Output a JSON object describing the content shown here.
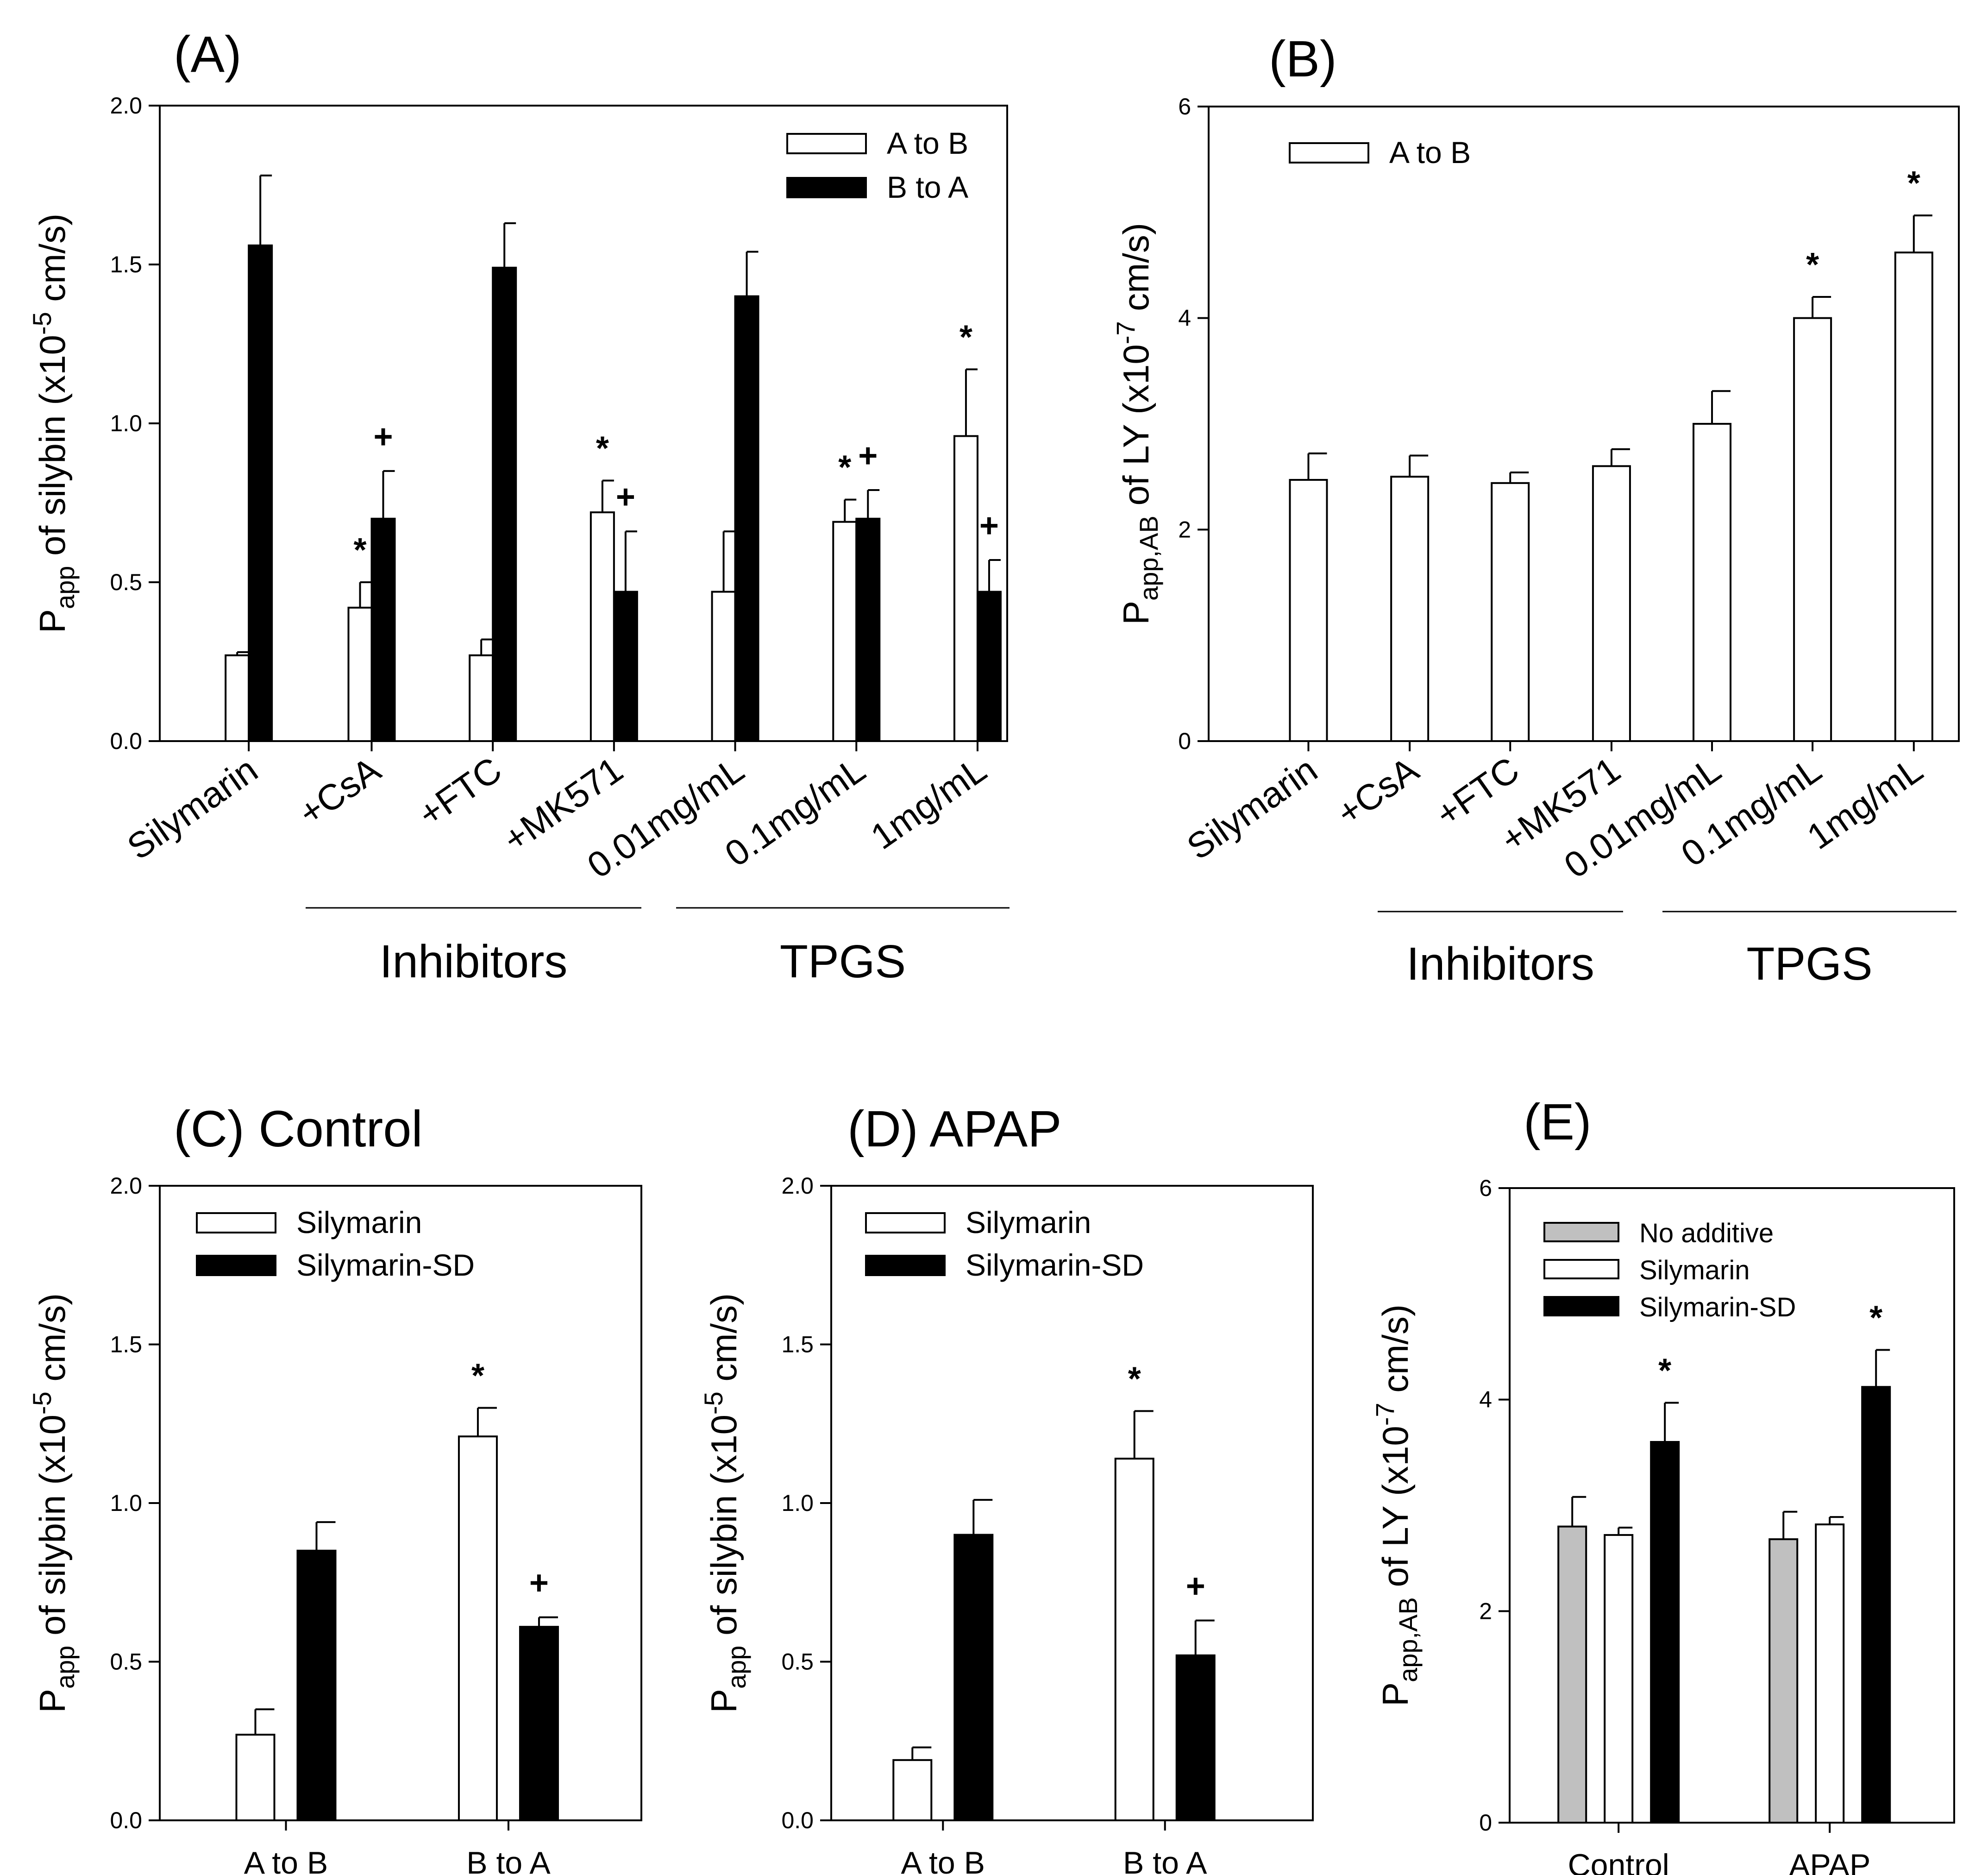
{
  "chart_data": [
    {
      "id": "A",
      "panel_label": "(A)",
      "type": "bar",
      "y_axis": {
        "title_main": "P",
        "title_sub": "app",
        "title_rest_before_sup": " of silybin (x10",
        "title_sup": "-5",
        "title_rest_after_sup": " cm/s)",
        "range": [
          0,
          2.0
        ],
        "ticks": [
          "0.0",
          "0.5",
          "1.0",
          "1.5",
          "2.0"
        ]
      },
      "categories": [
        "Silymarin",
        "+CsA",
        "+FTC",
        "+MK571",
        "0.01mg/mL",
        "0.1mg/mL",
        "1mg/mL"
      ],
      "category_groups": [
        {
          "label": "Inhibitors",
          "from": 1,
          "to": 3
        },
        {
          "label": "TPGS",
          "from": 4,
          "to": 6
        }
      ],
      "legend": {
        "position": "top-right"
      },
      "series": [
        {
          "name": "A to B",
          "fill": "#ffffff",
          "values": [
            0.27,
            0.42,
            0.27,
            0.72,
            0.47,
            0.69,
            0.96
          ],
          "errors": [
            0.01,
            0.08,
            0.05,
            0.1,
            0.19,
            0.07,
            0.21
          ]
        },
        {
          "name": "B to A",
          "fill": "#000000",
          "values": [
            1.56,
            0.7,
            1.49,
            0.47,
            1.4,
            0.7,
            0.47
          ],
          "errors": [
            0.22,
            0.15,
            0.14,
            0.19,
            0.14,
            0.09,
            0.1
          ]
        }
      ],
      "markers": [
        {
          "category": 1,
          "series": 0,
          "symbol": "*"
        },
        {
          "category": 1,
          "series": 1,
          "symbol": "+"
        },
        {
          "category": 3,
          "series": 0,
          "symbol": "*"
        },
        {
          "category": 3,
          "series": 1,
          "symbol": "+"
        },
        {
          "category": 5,
          "series": 0,
          "symbol": "*"
        },
        {
          "category": 5,
          "series": 1,
          "symbol": "+"
        },
        {
          "category": 6,
          "series": 0,
          "symbol": "*"
        },
        {
          "category": 6,
          "series": 1,
          "symbol": "+"
        }
      ]
    },
    {
      "id": "B",
      "panel_label": "(B)",
      "type": "bar",
      "y_axis": {
        "title_main": "P",
        "title_sub": "app,AB",
        "title_rest_before_sup": " of LY (x10",
        "title_sup": "-7",
        "title_rest_after_sup": " cm/s)",
        "range": [
          0,
          6
        ],
        "ticks": [
          "0",
          "2",
          "4",
          "6"
        ]
      },
      "categories": [
        "Silymarin",
        "+CsA",
        "+FTC",
        "+MK571",
        "0.01mg/mL",
        "0.1mg/mL",
        "1mg/mL"
      ],
      "category_groups": [
        {
          "label": "Inhibitors",
          "from": 1,
          "to": 3
        },
        {
          "label": "TPGS",
          "from": 4,
          "to": 6
        }
      ],
      "legend": {
        "position": "top-left"
      },
      "series": [
        {
          "name": "A to B",
          "fill": "#ffffff",
          "values": [
            2.47,
            2.5,
            2.44,
            2.6,
            3.0,
            4.0,
            4.62
          ],
          "errors": [
            0.25,
            0.2,
            0.1,
            0.16,
            0.31,
            0.2,
            0.35
          ]
        }
      ],
      "markers": [
        {
          "category": 5,
          "series": 0,
          "symbol": "*"
        },
        {
          "category": 6,
          "series": 0,
          "symbol": "*"
        }
      ]
    },
    {
      "id": "C",
      "panel_label": "(C) Control",
      "type": "bar",
      "y_axis": {
        "title_main": "P",
        "title_sub": "app",
        "title_rest_before_sup": " of silybin (x10",
        "title_sup": "-5",
        "title_rest_after_sup": " cm/s)",
        "range": [
          0,
          2.0
        ],
        "ticks": [
          "0.0",
          "0.5",
          "1.0",
          "1.5",
          "2.0"
        ]
      },
      "categories": [
        "A to B",
        "B to A"
      ],
      "legend": {
        "position": "top-left"
      },
      "series": [
        {
          "name": "Silymarin",
          "fill": "#ffffff",
          "values": [
            0.27,
            1.21
          ],
          "errors": [
            0.08,
            0.09
          ]
        },
        {
          "name": "Silymarin-SD",
          "fill": "#000000",
          "values": [
            0.85,
            0.61
          ],
          "errors": [
            0.09,
            0.03
          ]
        }
      ],
      "markers": [
        {
          "category": 1,
          "series": 0,
          "symbol": "*"
        },
        {
          "category": 1,
          "series": 1,
          "symbol": "+"
        }
      ]
    },
    {
      "id": "D",
      "panel_label": "(D) APAP",
      "type": "bar",
      "y_axis": {
        "title_main": "P",
        "title_sub": "app",
        "title_rest_before_sup": " of silybin (x10",
        "title_sup": "-5",
        "title_rest_after_sup": " cm/s)",
        "range": [
          0,
          2.0
        ],
        "ticks": [
          "0.0",
          "0.5",
          "1.0",
          "1.5",
          "2.0"
        ]
      },
      "categories": [
        "A to B",
        "B to A"
      ],
      "legend": {
        "position": "top-left"
      },
      "series": [
        {
          "name": "Silymarin",
          "fill": "#ffffff",
          "values": [
            0.19,
            1.14
          ],
          "errors": [
            0.04,
            0.15
          ]
        },
        {
          "name": "Silymarin-SD",
          "fill": "#000000",
          "values": [
            0.9,
            0.52
          ],
          "errors": [
            0.11,
            0.11
          ]
        }
      ],
      "markers": [
        {
          "category": 1,
          "series": 0,
          "symbol": "*"
        },
        {
          "category": 1,
          "series": 1,
          "symbol": "+"
        }
      ]
    },
    {
      "id": "E",
      "panel_label": "(E)",
      "type": "bar",
      "y_axis": {
        "title_main": "P",
        "title_sub": "app,AB",
        "title_rest_before_sup": " of LY (x10",
        "title_sup": "-7",
        "title_rest_after_sup": " cm/s)",
        "range": [
          0,
          6
        ],
        "ticks": [
          "0",
          "2",
          "4",
          "6"
        ]
      },
      "categories": [
        "Control",
        "APAP"
      ],
      "legend": {
        "position": "top-left"
      },
      "series": [
        {
          "name": "No additive",
          "fill": "#c0c0c0",
          "values": [
            2.8,
            2.68
          ],
          "errors": [
            0.28,
            0.26
          ]
        },
        {
          "name": "Silymarin",
          "fill": "#ffffff",
          "values": [
            2.72,
            2.82
          ],
          "errors": [
            0.07,
            0.07
          ]
        },
        {
          "name": "Silymarin-SD",
          "fill": "#000000",
          "values": [
            3.6,
            4.12
          ],
          "errors": [
            0.37,
            0.35
          ]
        }
      ],
      "markers": [
        {
          "category": 0,
          "series": 2,
          "symbol": "*"
        },
        {
          "category": 1,
          "series": 2,
          "symbol": "*"
        }
      ]
    }
  ]
}
